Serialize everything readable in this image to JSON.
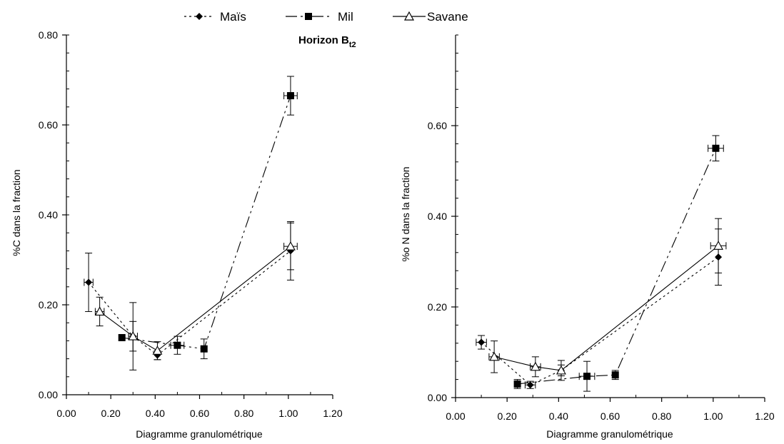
{
  "legend": [
    {
      "name": "Maïs",
      "marker": "diamond",
      "dash": "3,4"
    },
    {
      "name": "Mil",
      "marker": "square",
      "dash": "16,5,3,5,3,5"
    },
    {
      "name": "Savane",
      "marker": "triangle",
      "dash": ""
    }
  ],
  "horizon": {
    "base": "Horizon B",
    "sub": "t2"
  },
  "chart_data": [
    {
      "type": "scatter",
      "title": "",
      "xlabel": "Diagramme granulométrique",
      "ylabel": "%C dans la fraction",
      "xlim": [
        0,
        1.2
      ],
      "ylim": [
        0,
        0.8
      ],
      "xticks": [
        "0.00",
        "0.20",
        "0.40",
        "0.60",
        "0.80",
        "1.00",
        "1.20"
      ],
      "yticks": [
        "0.00",
        "0.20",
        "0.40",
        "0.60",
        "0.80"
      ],
      "grid": false,
      "series": [
        {
          "name": "Maïs",
          "marker": "diamond",
          "dash": "3,4",
          "points": [
            {
              "x": 0.1,
              "y": 0.25,
              "yerr": 0.065,
              "xerr": 0.02
            },
            {
              "x": 0.3,
              "y": 0.13,
              "yerr": 0.075,
              "xerr": 0
            },
            {
              "x": 0.41,
              "y": 0.088,
              "yerr": 0.01,
              "xerr": 0
            },
            {
              "x": 1.01,
              "y": 0.32,
              "yerr": 0.065,
              "xerr": 0
            }
          ]
        },
        {
          "name": "Mil",
          "marker": "square",
          "dash": "16,5,3,5,3,5",
          "points": [
            {
              "x": 0.25,
              "y": 0.127,
              "yerr": 0,
              "xerr": 0
            },
            {
              "x": 0.5,
              "y": 0.11,
              "yerr": 0.02,
              "xerr": 0.03
            },
            {
              "x": 0.62,
              "y": 0.102,
              "yerr": 0.022,
              "xerr": 0
            },
            {
              "x": 1.01,
              "y": 0.665,
              "yerr": 0.043,
              "xerr": 0.03
            }
          ]
        },
        {
          "name": "Savane",
          "marker": "triangle",
          "dash": "",
          "points": [
            {
              "x": 0.15,
              "y": 0.185,
              "yerr": 0.032,
              "xerr": 0.02
            },
            {
              "x": 0.3,
              "y": 0.13,
              "yerr": 0.033,
              "xerr": 0.02
            },
            {
              "x": 0.41,
              "y": 0.098,
              "yerr": 0.02,
              "xerr": 0
            },
            {
              "x": 1.01,
              "y": 0.33,
              "yerr": 0.052,
              "xerr": 0.03
            }
          ]
        }
      ]
    },
    {
      "type": "scatter",
      "title": "",
      "xlabel": "Diagramme granulométrique",
      "ylabel": "%o N dans la fraction",
      "xlim": [
        0,
        1.2
      ],
      "ylim": [
        0,
        0.8
      ],
      "xticks": [
        "0.00",
        "0.20",
        "0.40",
        "0.60",
        "0.80",
        "1.00",
        "1.20"
      ],
      "yticks": [
        "0.00",
        "0.20",
        "0.40",
        "0.60"
      ],
      "grid": false,
      "series": [
        {
          "name": "Maïs",
          "marker": "diamond",
          "dash": "3,4",
          "points": [
            {
              "x": 0.1,
              "y": 0.122,
              "yerr": 0.015,
              "xerr": 0.02
            },
            {
              "x": 0.29,
              "y": 0.028,
              "yerr": 0.008,
              "xerr": 0.02
            },
            {
              "x": 0.41,
              "y": 0.06,
              "yerr": 0.012,
              "xerr": 0
            },
            {
              "x": 1.02,
              "y": 0.31,
              "yerr": 0.062,
              "xerr": 0
            }
          ]
        },
        {
          "name": "Mil",
          "marker": "square",
          "dash": "16,5,3,5,3,5",
          "points": [
            {
              "x": 0.24,
              "y": 0.03,
              "yerr": 0.01,
              "xerr": 0
            },
            {
              "x": 0.51,
              "y": 0.047,
              "yerr": 0.033,
              "xerr": 0.03
            },
            {
              "x": 0.62,
              "y": 0.05,
              "yerr": 0.01,
              "xerr": 0
            },
            {
              "x": 1.01,
              "y": 0.55,
              "yerr": 0.028,
              "xerr": 0.03
            }
          ]
        },
        {
          "name": "Savane",
          "marker": "triangle",
          "dash": "",
          "points": [
            {
              "x": 0.15,
              "y": 0.09,
              "yerr": 0.035,
              "xerr": 0.02
            },
            {
              "x": 0.31,
              "y": 0.068,
              "yerr": 0.022,
              "xerr": 0.02
            },
            {
              "x": 0.41,
              "y": 0.06,
              "yerr": 0.022,
              "xerr": 0
            },
            {
              "x": 1.02,
              "y": 0.335,
              "yerr": 0.06,
              "xerr": 0.03
            }
          ]
        }
      ]
    }
  ]
}
